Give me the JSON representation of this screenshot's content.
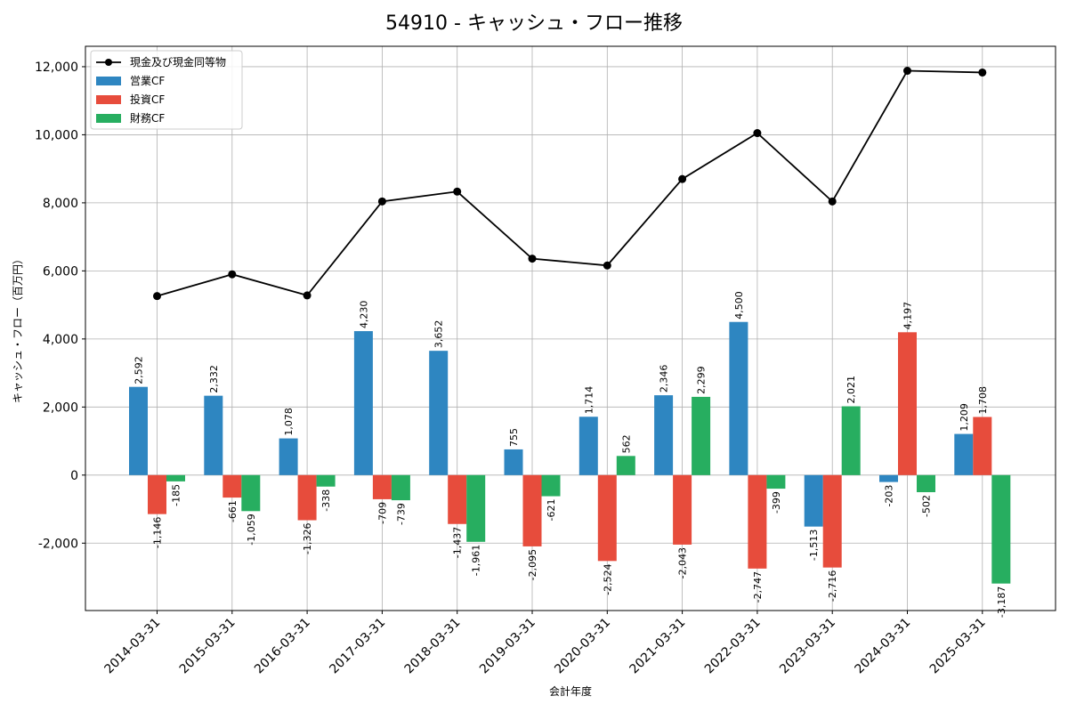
{
  "chart_data": {
    "type": "bar",
    "title": "54910 - キャッシュ・フロー推移",
    "xlabel": "会計年度",
    "ylabel": "キャッシュ・フロー（百万円）",
    "ylim": [
      -3980,
      12600
    ],
    "yticks": [
      -2000,
      0,
      2000,
      4000,
      6000,
      8000,
      10000,
      12000
    ],
    "ytick_labels": [
      "-2,000",
      "0",
      "2,000",
      "4,000",
      "6,000",
      "8,000",
      "10,000",
      "12,000"
    ],
    "grid": true,
    "legend_position": "top-left",
    "categories": [
      "2014-03-31",
      "2015-03-31",
      "2016-03-31",
      "2017-03-31",
      "2018-03-31",
      "2019-03-31",
      "2020-03-31",
      "2021-03-31",
      "2022-03-31",
      "2023-03-31",
      "2024-03-31",
      "2025-03-31"
    ],
    "series": [
      {
        "name": "営業CF",
        "kind": "bar",
        "color": "#2e86c1",
        "values": [
          2592,
          2332,
          1078,
          4230,
          3652,
          755,
          1714,
          2346,
          4500,
          -1513,
          -203,
          1209
        ],
        "labels": [
          "2,592",
          "2,332",
          "1,078",
          "4,230",
          "3,652",
          "755",
          "1,714",
          "2,346",
          "4,500",
          "-1,513",
          "-203",
          "1,209"
        ]
      },
      {
        "name": "投資CF",
        "kind": "bar",
        "color": "#e74c3c",
        "values": [
          -1146,
          -661,
          -1326,
          -709,
          -1437,
          -2095,
          -2524,
          -2043,
          -2747,
          -2716,
          4197,
          1708
        ],
        "labels": [
          "-1,146",
          "-661",
          "-1,326",
          "-709",
          "-1,437",
          "-2,095",
          "-2,524",
          "-2,043",
          "-2,747",
          "-2,716",
          "4,197",
          "1,708"
        ]
      },
      {
        "name": "財務CF",
        "kind": "bar",
        "color": "#27ae60",
        "values": [
          -185,
          -1059,
          -338,
          -739,
          -1961,
          -621,
          562,
          2299,
          -399,
          2021,
          -502,
          -3187
        ],
        "labels": [
          "-185",
          "-1,059",
          "-338",
          "-739",
          "-1,961",
          "-621",
          "562",
          "2,299",
          "-399",
          "2,021",
          "-502",
          "-3,187"
        ]
      },
      {
        "name": "現金及び現金同等物",
        "kind": "line",
        "color": "#000000",
        "values": [
          5260,
          5900,
          5280,
          8040,
          8330,
          6360,
          6160,
          8700,
          10050,
          8040,
          11880,
          11830
        ]
      }
    ],
    "legend_order": [
      "現金及び現金同等物",
      "営業CF",
      "投資CF",
      "財務CF"
    ]
  }
}
